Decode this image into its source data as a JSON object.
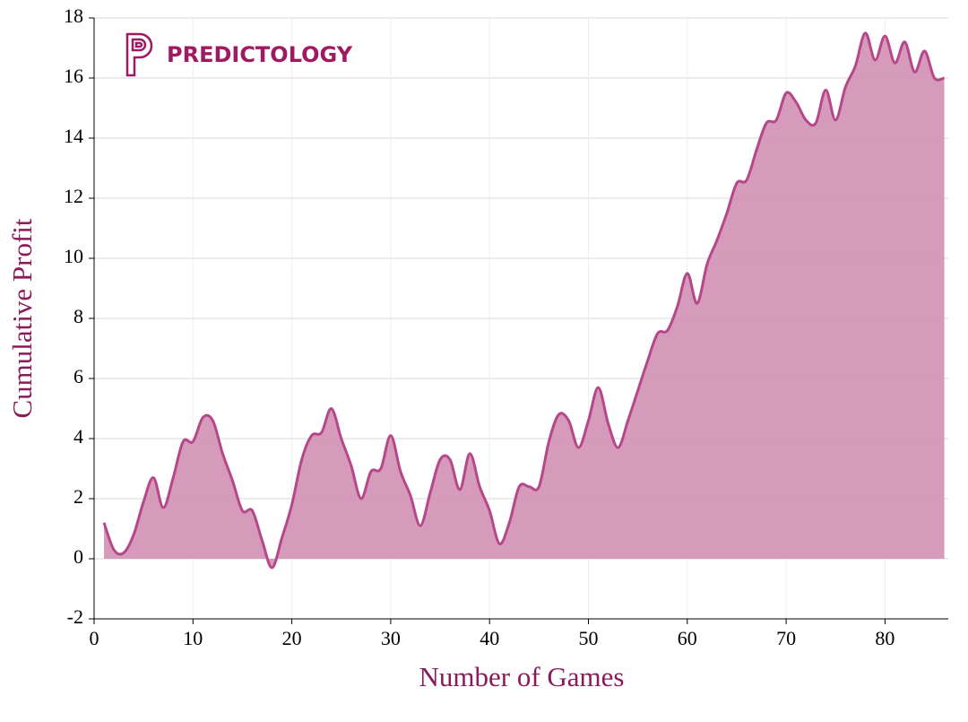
{
  "chart_data": {
    "type": "area",
    "brand": "PREDICTOLOGY",
    "xlabel": "Number of Games",
    "ylabel": "Cumulative Profit",
    "x": [
      1,
      2,
      3,
      4,
      5,
      6,
      7,
      8,
      9,
      10,
      11,
      12,
      13,
      14,
      15,
      16,
      17,
      18,
      19,
      20,
      21,
      22,
      23,
      24,
      25,
      26,
      27,
      28,
      29,
      30,
      31,
      32,
      33,
      34,
      35,
      36,
      37,
      38,
      39,
      40,
      41,
      42,
      43,
      44,
      45,
      46,
      47,
      48,
      49,
      50,
      51,
      52,
      53,
      54,
      55,
      56,
      57,
      58,
      59,
      60,
      61,
      62,
      63,
      64,
      65,
      66,
      67,
      68,
      69,
      70,
      71,
      72,
      73,
      74,
      75,
      76,
      77,
      78,
      79,
      80,
      81,
      82,
      83,
      84,
      85,
      86
    ],
    "series": [
      {
        "color": "#b5478a",
        "fill": "#d495b7",
        "values": [
          1.2,
          0.3,
          0.2,
          0.8,
          1.9,
          2.7,
          1.7,
          2.7,
          3.9,
          3.9,
          4.7,
          4.6,
          3.5,
          2.6,
          1.6,
          1.6,
          0.6,
          -0.3,
          0.7,
          1.8,
          3.3,
          4.1,
          4.2,
          5.0,
          4.0,
          3.1,
          2.0,
          2.9,
          3.0,
          4.1,
          2.9,
          2.1,
          1.1,
          2.2,
          3.3,
          3.3,
          2.3,
          3.5,
          2.4,
          1.6,
          0.5,
          1.2,
          2.4,
          2.4,
          2.4,
          3.9,
          4.8,
          4.6,
          3.7,
          4.6,
          5.7,
          4.5,
          3.7,
          4.6,
          5.6,
          6.6,
          7.5,
          7.6,
          8.4,
          9.5,
          8.5,
          9.8,
          10.6,
          11.5,
          12.5,
          12.6,
          13.6,
          14.5,
          14.6,
          15.5,
          15.2,
          14.6,
          14.5,
          15.6,
          14.6,
          15.7,
          16.4,
          17.5,
          16.6,
          17.4,
          16.5,
          17.2,
          16.2,
          16.9,
          16.0,
          16.0
        ]
      }
    ],
    "xlim": [
      0,
      86.4
    ],
    "ylim": [
      -2,
      18
    ],
    "xticks": [
      0,
      10,
      20,
      30,
      40,
      50,
      60,
      70,
      80
    ],
    "yticks": [
      -2,
      0,
      2,
      4,
      6,
      8,
      10,
      12,
      14,
      16,
      18
    ],
    "grid": true
  }
}
